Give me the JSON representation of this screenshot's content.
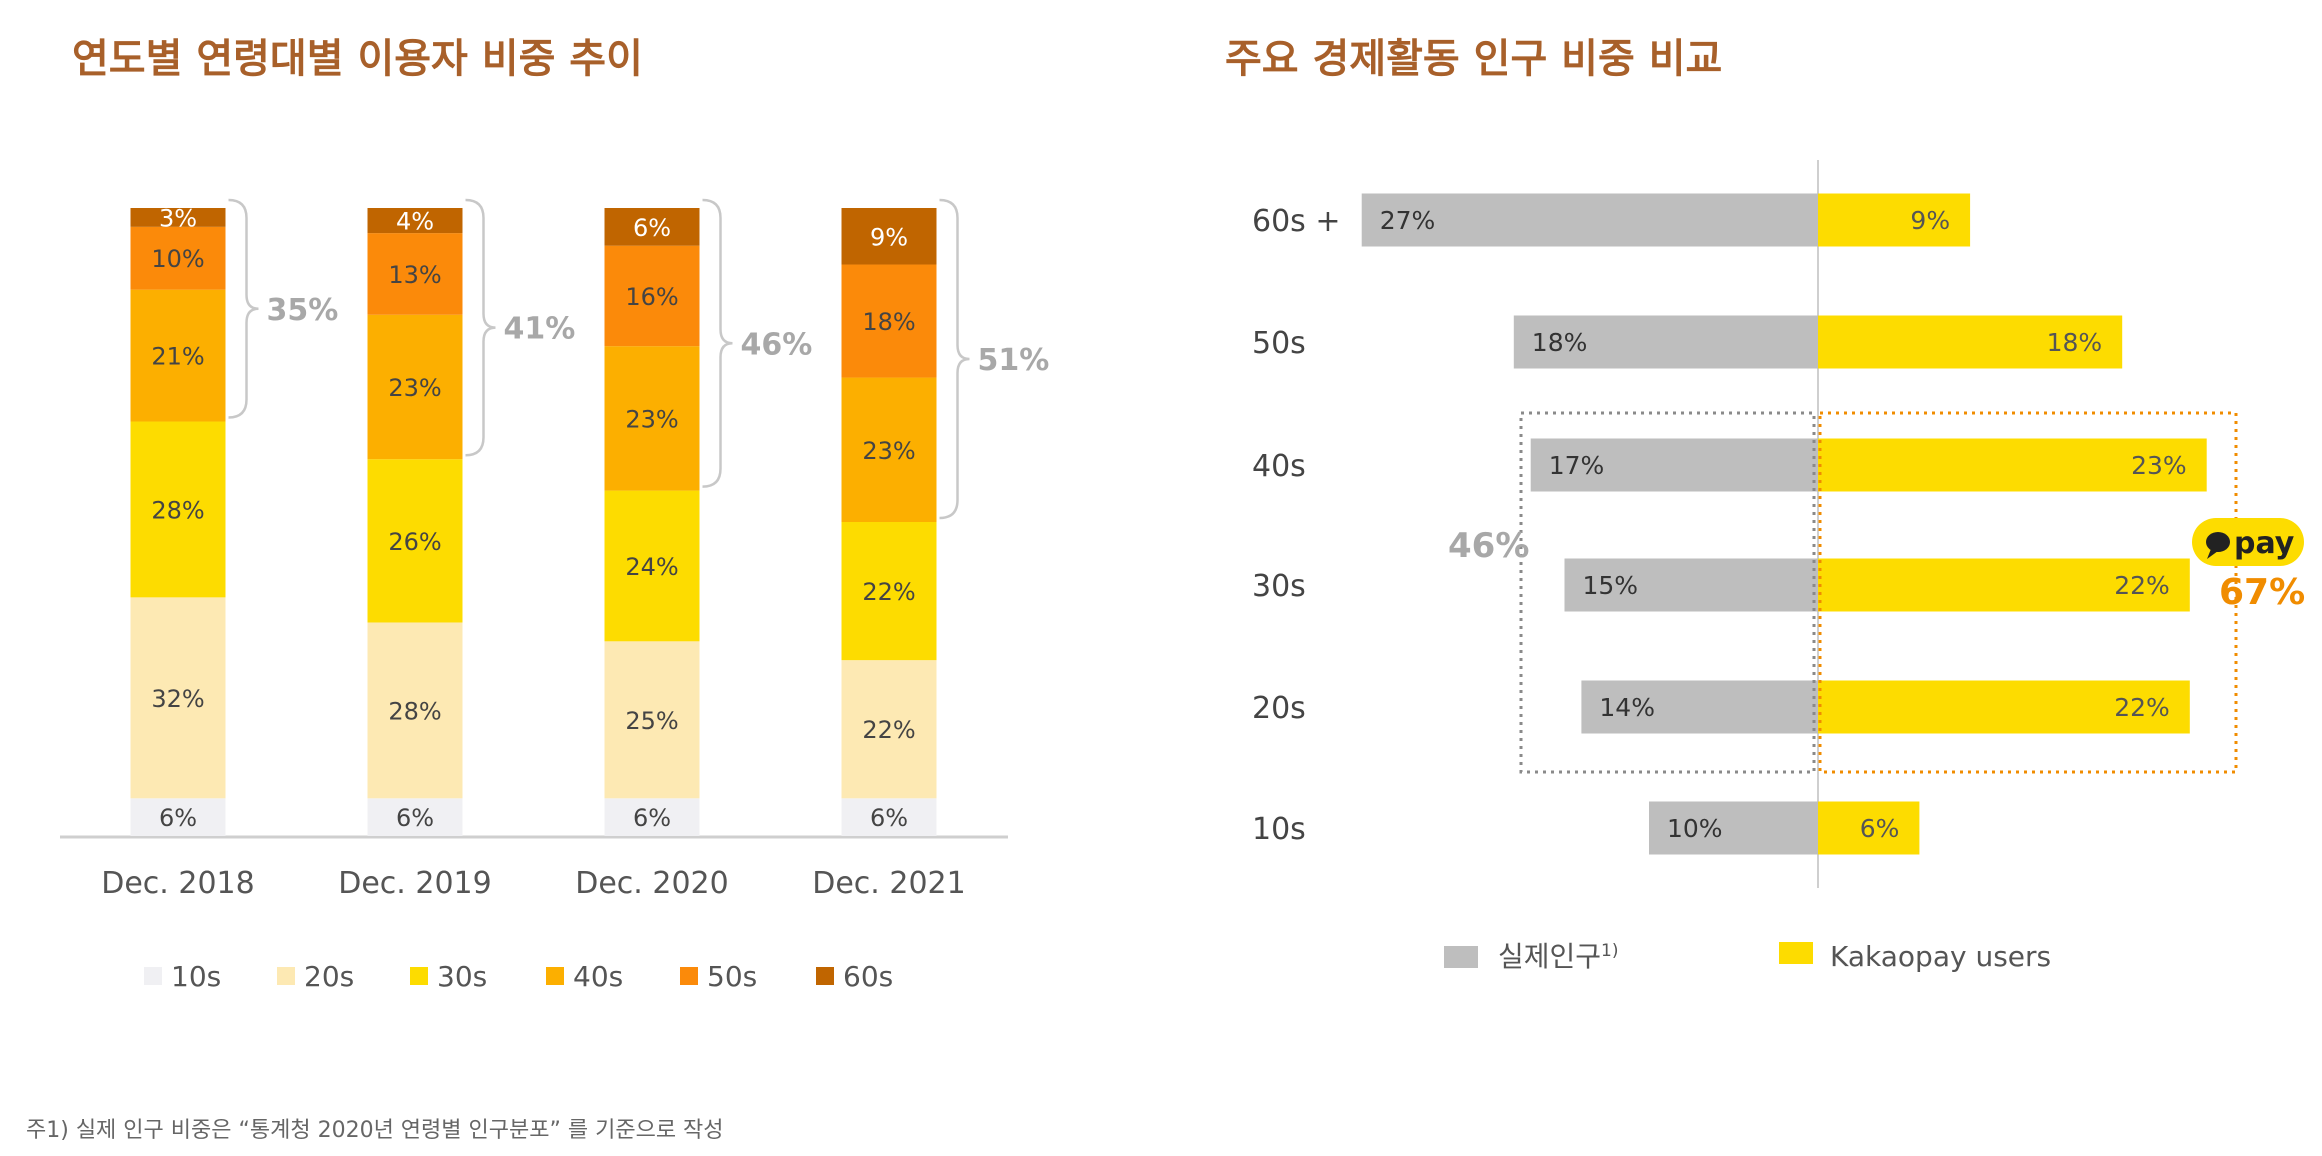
{
  "left_title": "연도별 연령대별 이용자 비중 추이",
  "right_title": "주요 경제활동 인구 비중 비교",
  "footnote": "주1) 실제 인구 비중은 “통계청 2020년 연령별 인구분포” 를 기준으로 작성",
  "colors": {
    "title": "#a8602a",
    "10s": "#f0f0f3",
    "20s": "#fde9b3",
    "30s": "#fddc00",
    "40s": "#fcaf00",
    "50s": "#fb8a0a",
    "60s": "#c06500",
    "population": "#bebebe",
    "kakaopay": "#fddc00",
    "accent": "#f08c00"
  },
  "chart_data": [
    {
      "type": "bar",
      "stacked": true,
      "categories": [
        "Dec. 2018",
        "Dec. 2019",
        "Dec. 2020",
        "Dec. 2021"
      ],
      "series": [
        {
          "name": "10s",
          "values": [
            6,
            6,
            6,
            6
          ]
        },
        {
          "name": "20s",
          "values": [
            32,
            28,
            25,
            22
          ]
        },
        {
          "name": "30s",
          "values": [
            28,
            26,
            24,
            22
          ]
        },
        {
          "name": "40s",
          "values": [
            21,
            23,
            23,
            23
          ]
        },
        {
          "name": "50s",
          "values": [
            10,
            13,
            16,
            18
          ]
        },
        {
          "name": "60s",
          "values": [
            3,
            4,
            6,
            9
          ]
        }
      ],
      "brace_totals": [
        "35%",
        "41%",
        "46%",
        "51%"
      ],
      "ylim": [
        0,
        100
      ],
      "legend": "bottom"
    },
    {
      "type": "bar",
      "orientation": "horizontal",
      "diverging": true,
      "categories": [
        "60s +",
        "50s",
        "40s",
        "30s",
        "20s",
        "10s"
      ],
      "series": [
        {
          "name": "실제인구",
          "footnote_mark": "1)",
          "values": [
            27,
            18,
            17,
            15,
            14,
            10
          ]
        },
        {
          "name": "Kakaopay users",
          "values": [
            9,
            18,
            23,
            22,
            22,
            6
          ]
        }
      ],
      "highlight": {
        "population_total": "46%",
        "kakaopay_total": "67%",
        "brand_badge": "pay"
      },
      "legend": "bottom"
    }
  ]
}
